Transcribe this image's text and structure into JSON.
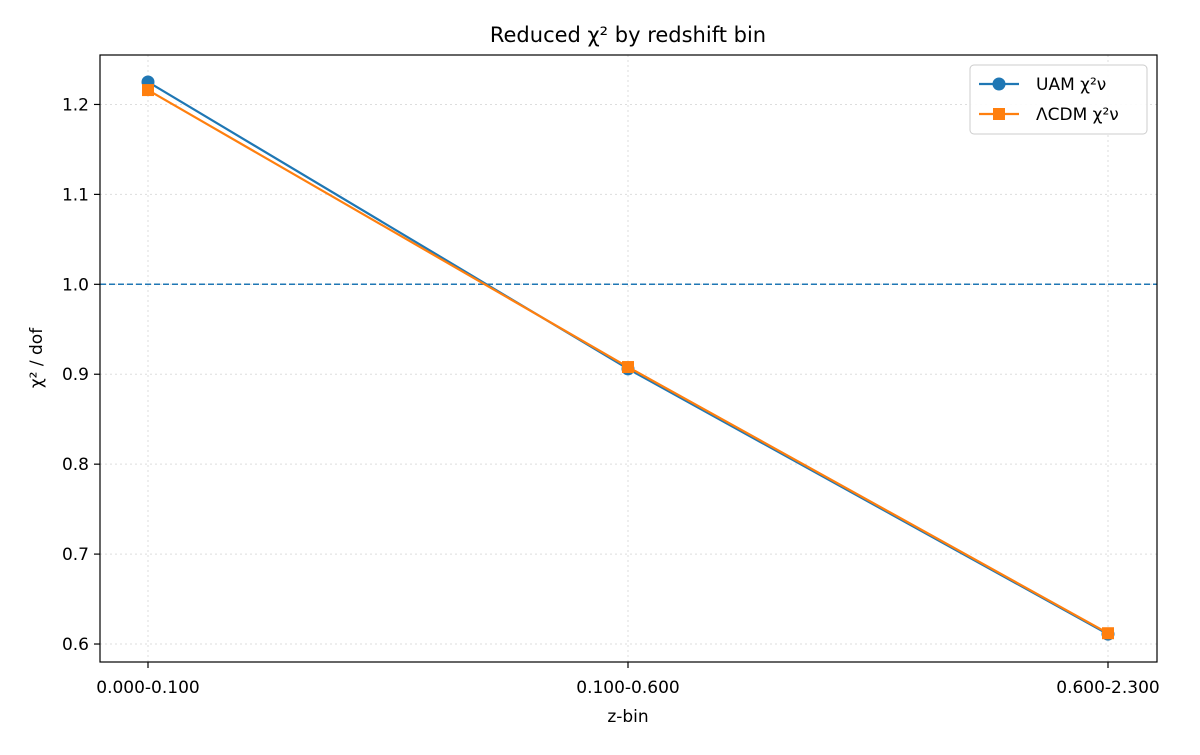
{
  "chart_data": {
    "type": "line",
    "title": "Reduced χ² by redshift bin",
    "xlabel": "z-bin",
    "ylabel": "χ² / dof",
    "categories": [
      "0.000-0.100",
      "0.100-0.600",
      "0.600-2.300"
    ],
    "ylim": [
      0.58,
      1.255
    ],
    "yticks": [
      "0.6",
      "0.7",
      "0.8",
      "0.9",
      "1.0",
      "1.1",
      "1.2"
    ],
    "grid": true,
    "legend_position": "top-right",
    "reference_line": {
      "y": 1.0,
      "style": "dashed",
      "color": "#1f77b4"
    },
    "series": [
      {
        "name": "UAM χ²ν",
        "values": [
          1.225,
          0.906,
          0.611
        ],
        "color": "#1f77b4",
        "marker": "circle"
      },
      {
        "name": "ΛCDM χ²ν",
        "values": [
          1.216,
          0.908,
          0.612
        ],
        "color": "#ff7f0e",
        "marker": "square"
      }
    ]
  }
}
